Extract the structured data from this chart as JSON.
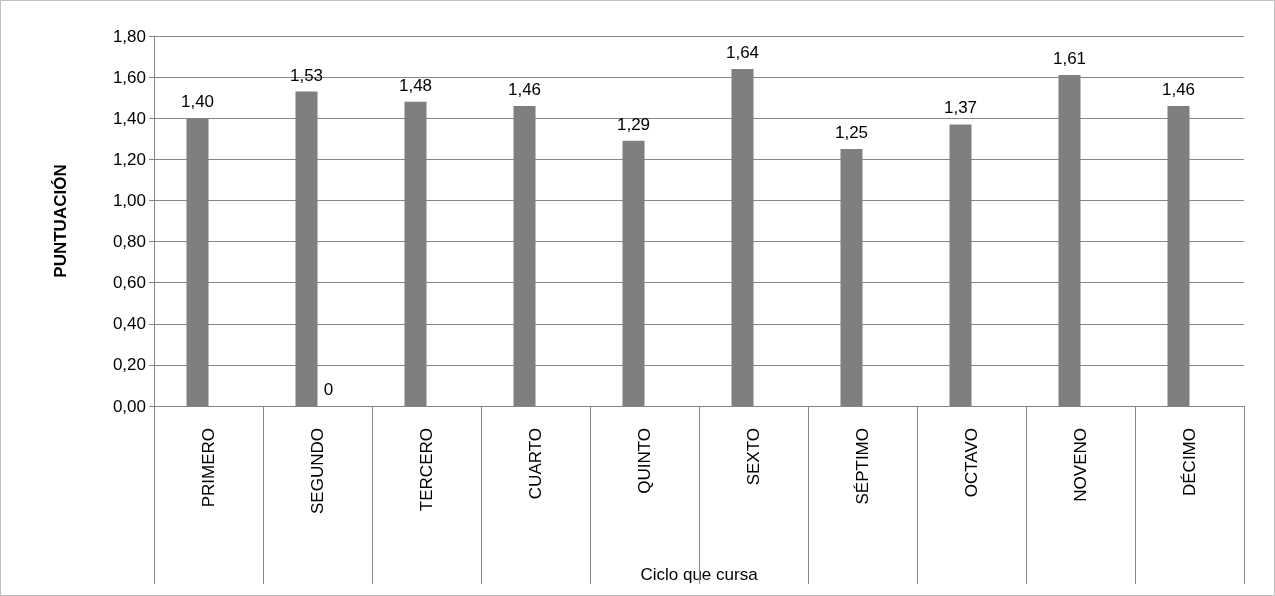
{
  "chart_data": {
    "type": "bar",
    "xlabel": "Ciclo que cursa",
    "ylabel": "PUNTUACIÓN",
    "categories": [
      "PRIMERO",
      "SEGUNDO",
      "TERCERO",
      "CUARTO",
      "QUINTO",
      "SEXTO",
      "SÉPTIMO",
      "OCTAVO",
      "NOVENO",
      "DÉCIMO"
    ],
    "series": [
      {
        "color": "#7f7f7f",
        "values": [
          1.4,
          1.53,
          1.48,
          1.46,
          1.29,
          1.64,
          1.25,
          1.37,
          1.61,
          1.46
        ],
        "value_labels": [
          "1,40",
          "1,53",
          "1,48",
          "1,46",
          "1,29",
          "1,64",
          "1,25",
          "1,37",
          "1,61",
          "1,46"
        ]
      },
      {
        "color": "#7f7f7f",
        "values": [
          null,
          0,
          null,
          null,
          null,
          null,
          null,
          null,
          null,
          null
        ],
        "value_labels": [
          null,
          "0",
          null,
          null,
          null,
          null,
          null,
          null,
          null,
          null
        ]
      }
    ],
    "ylim": [
      0,
      1.8
    ],
    "yticks": [
      {
        "value": 0,
        "label": "0,00"
      },
      {
        "value": 0.2,
        "label": "0,20"
      },
      {
        "value": 0.4,
        "label": "0,40"
      },
      {
        "value": 0.6,
        "label": "0,60"
      },
      {
        "value": 0.8,
        "label": "0,80"
      },
      {
        "value": 1.0,
        "label": "1,00"
      },
      {
        "value": 1.2,
        "label": "1,20"
      },
      {
        "value": 1.4,
        "label": "1,40"
      },
      {
        "value": 1.6,
        "label": "1,60"
      },
      {
        "value": 1.8,
        "label": "1,80"
      }
    ],
    "grid": "y"
  }
}
